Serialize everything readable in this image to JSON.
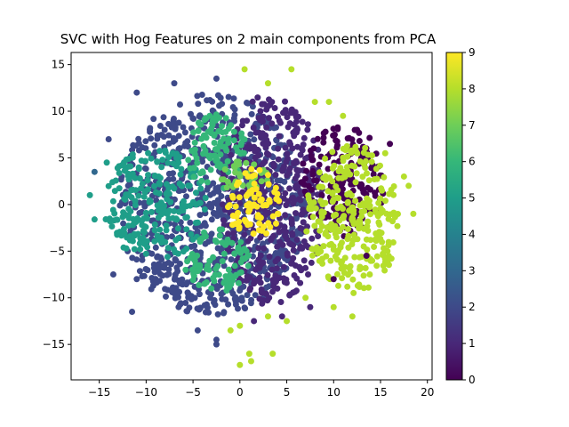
{
  "chart_data": {
    "type": "scatter",
    "title": "SVC with Hog Features on 2 main components from PCA",
    "xlabel": "",
    "ylabel": "",
    "xlim": [
      -18,
      20.5
    ],
    "ylim": [
      -18.8,
      16.3
    ],
    "x_ticks": [
      -15,
      -10,
      -5,
      0,
      5,
      10,
      15,
      20
    ],
    "y_ticks": [
      -15,
      -10,
      -5,
      0,
      5,
      10,
      15
    ],
    "x_tick_labels": [
      "−15",
      "−10",
      "−5",
      "0",
      "5",
      "10",
      "15",
      "20"
    ],
    "y_tick_labels": [
      "−15",
      "−10",
      "−5",
      "0",
      "5",
      "10",
      "15"
    ],
    "grid": false,
    "colorbar": {
      "min": 0,
      "max": 9,
      "ticks": [
        0,
        1,
        2,
        3,
        4,
        5,
        6,
        7,
        8,
        9
      ],
      "tick_labels": [
        "0",
        "1",
        "2",
        "3",
        "4",
        "5",
        "6",
        "7",
        "8",
        "9"
      ],
      "colormap": "viridis"
    },
    "class_colors": [
      "#440154",
      "#482878",
      "#3e4a89",
      "#31688e",
      "#26828e",
      "#1f9e89",
      "#35b779",
      "#6ece58",
      "#b5de2b",
      "#fde725"
    ],
    "clusters": [
      {
        "class": 2,
        "cx": -3.0,
        "cy": 0.0,
        "rx": 10.0,
        "ry": 12.0
      },
      {
        "class": 1,
        "cx": 3.5,
        "cy": 0.5,
        "rx": 5.5,
        "ry": 11.5
      },
      {
        "class": 0,
        "cx": 11.0,
        "cy": 2.5,
        "rx": 4.5,
        "ry": 6.0
      },
      {
        "class": 8,
        "cx": 12.0,
        "cy": -1.5,
        "rx": 5.0,
        "ry": 8.0
      },
      {
        "class": 5,
        "cx": -9.0,
        "cy": 0.0,
        "rx": 5.5,
        "ry": 6.0
      },
      {
        "class": 6,
        "cx": -2.5,
        "cy": 5.5,
        "rx": 3.2,
        "ry": 4.2
      },
      {
        "class": 6,
        "cx": -2.5,
        "cy": -6.0,
        "rx": 3.5,
        "ry": 3.5
      },
      {
        "class": 7,
        "cx": 0.5,
        "cy": 3.0,
        "rx": 2.5,
        "ry": 2.0
      },
      {
        "class": 9,
        "cx": 1.5,
        "cy": 0.0,
        "rx": 2.8,
        "ry": 3.8
      }
    ],
    "sample_points": [
      [
        -16,
        1,
        5
      ],
      [
        -15.5,
        -1.6,
        5
      ],
      [
        -15.5,
        3.5,
        3
      ],
      [
        -14.2,
        4.5,
        5
      ],
      [
        -14,
        7,
        2
      ],
      [
        -11.5,
        -11.5,
        2
      ],
      [
        -11,
        12,
        2
      ],
      [
        -7,
        13,
        2
      ],
      [
        -2.5,
        13.5,
        2
      ],
      [
        0.5,
        14.5,
        8
      ],
      [
        3,
        13,
        8
      ],
      [
        5.5,
        14.5,
        8
      ],
      [
        8,
        11,
        8
      ],
      [
        9.5,
        11,
        8
      ],
      [
        11,
        9.5,
        8
      ],
      [
        15.5,
        5.5,
        8
      ],
      [
        17.5,
        3,
        8
      ],
      [
        18,
        2,
        8
      ],
      [
        18.5,
        -1,
        8
      ],
      [
        16,
        6.5,
        0
      ],
      [
        12.5,
        8,
        0
      ],
      [
        13.5,
        -5.5,
        0
      ],
      [
        10,
        -8,
        0
      ],
      [
        7,
        -10,
        8
      ],
      [
        10,
        -11,
        8
      ],
      [
        12,
        -12,
        8
      ],
      [
        5,
        -12.5,
        8
      ],
      [
        3,
        -12,
        8
      ],
      [
        0,
        -13,
        8
      ],
      [
        -1,
        -13.5,
        8
      ],
      [
        1,
        -16,
        8
      ],
      [
        0,
        -17.2,
        8
      ],
      [
        1.2,
        -16.8,
        8
      ],
      [
        3.5,
        -16,
        8
      ],
      [
        -2.5,
        -15,
        2
      ],
      [
        -2.5,
        -14.5,
        2
      ],
      [
        -4.5,
        -13.5,
        2
      ],
      [
        -13.5,
        -7.5,
        2
      ],
      [
        -11,
        -8,
        2
      ],
      [
        1.5,
        -12.5,
        1
      ],
      [
        4.5,
        -12,
        1
      ],
      [
        7.5,
        -11,
        1
      ]
    ]
  }
}
